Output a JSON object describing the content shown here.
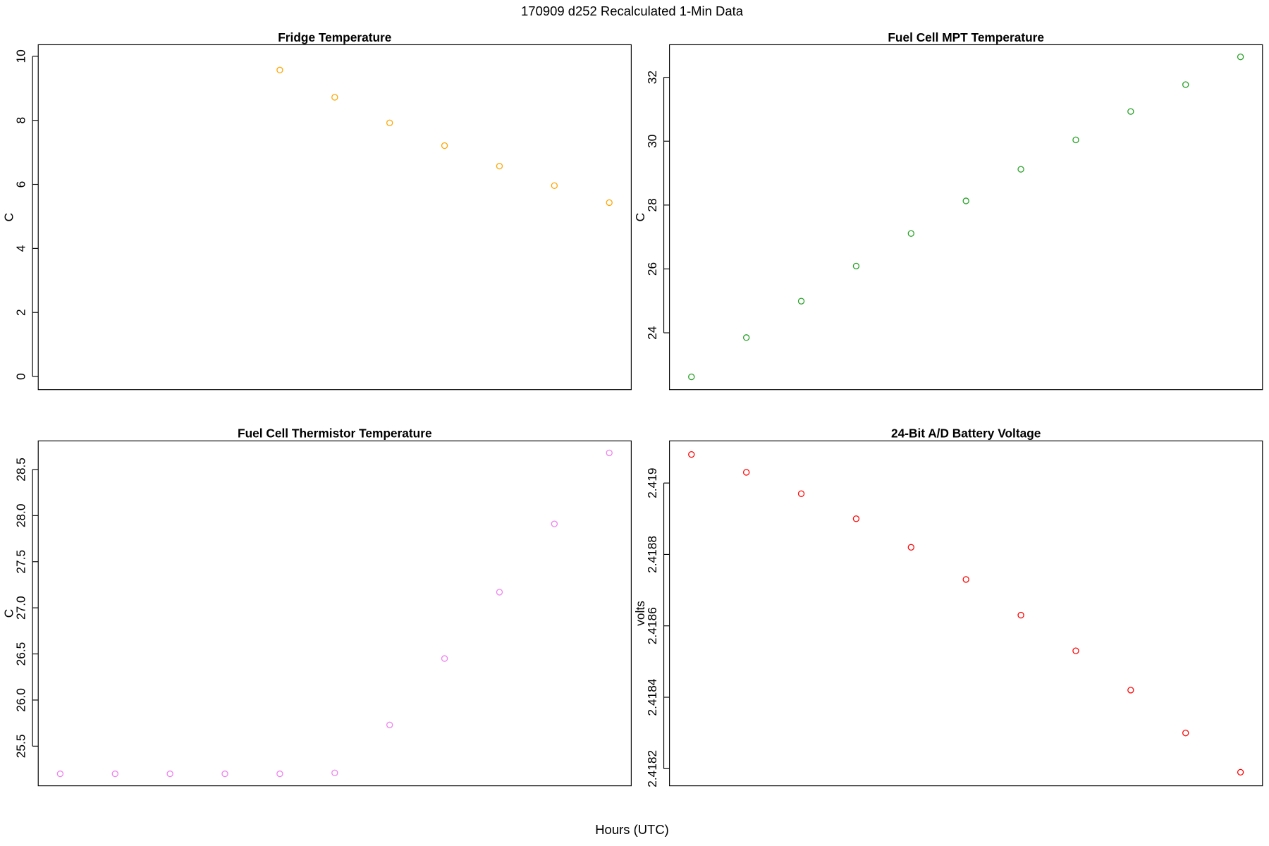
{
  "page": {
    "title": "170909   d252   Recalculated 1-Min Data",
    "x_label": "Hours (UTC)"
  },
  "chart_data": [
    {
      "type": "scatter",
      "title": "Fridge Temperature",
      "y_label": "C",
      "color": "orange",
      "categories": [
        null,
        null,
        null,
        null,
        null,
        null,
        null,
        null,
        null,
        null,
        null
      ],
      "values": [
        null,
        null,
        null,
        null,
        9.57,
        8.72,
        7.92,
        7.21,
        6.57,
        5.96,
        5.43
      ],
      "ylim": [
        -0.41,
        10.36
      ],
      "yticks": [
        0,
        2,
        4,
        6,
        8,
        10
      ]
    },
    {
      "type": "scatter",
      "title": "Fuel Cell MPT Temperature",
      "y_label": "C",
      "color": "#22a022",
      "categories": [
        null,
        null,
        null,
        null,
        null,
        null,
        null,
        null,
        null,
        null,
        null
      ],
      "values": [
        22.62,
        23.85,
        24.99,
        26.09,
        27.11,
        28.13,
        29.12,
        30.04,
        30.93,
        31.77,
        32.64
      ],
      "ylim": [
        22.22,
        33.02
      ],
      "yticks": [
        24,
        26,
        28,
        30,
        32
      ]
    },
    {
      "type": "scatter",
      "title": "Fuel Cell Thermistor Temperature",
      "y_label": "C",
      "color": "violet",
      "categories": [
        null,
        null,
        null,
        null,
        null,
        null,
        null,
        null,
        null,
        null,
        null
      ],
      "values": [
        25.2,
        25.2,
        25.2,
        25.2,
        25.2,
        25.21,
        25.73,
        26.45,
        27.17,
        27.91,
        28.68
      ],
      "ylim": [
        25.07,
        28.81
      ],
      "yticks": [
        25.5,
        {
          "value": 26,
          "label": "26.0"
        },
        26.5,
        {
          "value": 27,
          "label": "27.0"
        },
        27.5,
        {
          "value": 28,
          "label": "28.0"
        },
        28.5
      ]
    },
    {
      "type": "scatter",
      "title": "24-Bit A/D Battery Voltage",
      "y_label": "volts",
      "color": "red",
      "categories": [
        null,
        null,
        null,
        null,
        null,
        null,
        null,
        null,
        null,
        null,
        null
      ],
      "values": [
        2.41908,
        2.41903,
        2.41897,
        2.4189,
        2.41882,
        2.41873,
        2.41863,
        2.41853,
        2.41842,
        2.4183,
        2.41819
      ],
      "ylim": [
        2.418152,
        2.419118
      ],
      "yticks": [
        2.4182,
        2.4184,
        2.4186,
        2.4188,
        2.419
      ]
    }
  ]
}
